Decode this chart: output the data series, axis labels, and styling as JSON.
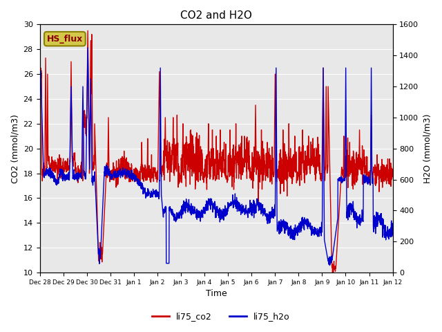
{
  "title": "CO2 and H2O",
  "xlabel": "Time",
  "ylabel_left": "CO2 (mmol/m3)",
  "ylabel_right": "H2O (mmol/m3)",
  "ylim_left": [
    10,
    30
  ],
  "ylim_right": [
    0,
    1600
  ],
  "yticks_left": [
    10,
    12,
    14,
    16,
    18,
    20,
    22,
    24,
    26,
    28,
    30
  ],
  "yticks_right": [
    0,
    200,
    400,
    600,
    800,
    1000,
    1200,
    1400,
    1600
  ],
  "xtick_labels": [
    "Dec 28",
    "Dec 29",
    "Dec 30",
    "Dec 31",
    "Jan 1",
    "Jan 2",
    "Jan 3",
    "Jan 4",
    "Jan 5",
    "Jan 6",
    "Jan 7",
    "Jan 8",
    "Jan 9",
    "Jan 10",
    "Jan 11",
    "Jan 12"
  ],
  "legend_label_co2": "li75_co2",
  "legend_label_h2o": "li75_h2o",
  "color_co2": "#cc0000",
  "color_h2o": "#0000cc",
  "annotation_text": "HS_flux",
  "annotation_bg": "#d4c84a",
  "annotation_border": "#8B8000",
  "bg_color": "#e8e8e8",
  "fig_bg": "#ffffff",
  "linewidth": 1.0
}
